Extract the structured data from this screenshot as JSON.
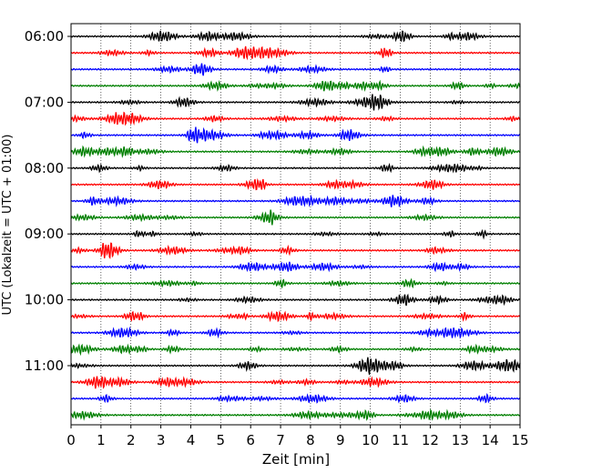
{
  "chart_data": {
    "type": "line",
    "title": "",
    "xlabel": "Zeit  [min]",
    "ylabel": "UTC (Lokalzeit = UTC + 01:00)",
    "xlim": [
      0,
      15
    ],
    "x_ticks": [
      "0",
      "1",
      "2",
      "3",
      "4",
      "5",
      "6",
      "7",
      "8",
      "9",
      "10",
      "11",
      "12",
      "13",
      "14",
      "15"
    ],
    "y_ticks": [
      "06:00",
      "07:00",
      "08:00",
      "09:00",
      "10:00",
      "11:00"
    ],
    "row_interval_minutes": 15,
    "rows": 24,
    "first_row_time": "06:00",
    "trace_colors": [
      "#000000",
      "#ff0000",
      "#0000ff",
      "#008000"
    ],
    "grid": "vertical dotted lines at each minute",
    "legend": "none"
  }
}
